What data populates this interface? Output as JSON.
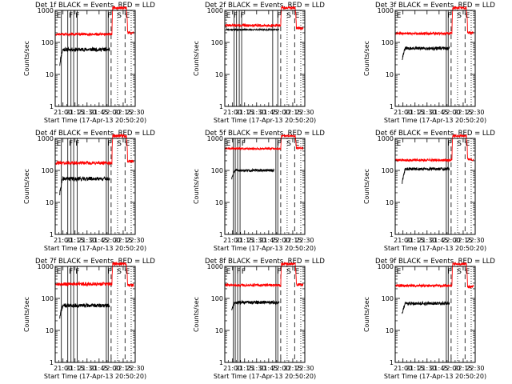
{
  "figure": {
    "background": "#ffffff",
    "event_color": "#000000",
    "lld_color": "#ff0000"
  },
  "chart_data": [
    {
      "type": "line",
      "title": "Det 1f BLACK = Events, RED = LLD",
      "xlabel": "Start Time (17-Apr-13 20:50:20)",
      "ylabel": "Counts/sec",
      "yscale": "log",
      "ylim": [
        1,
        1000
      ],
      "xlim": [
        "20:50:20",
        "22:30:00"
      ],
      "x_ticks": [
        "21:00",
        "21:15",
        "21:30",
        "21:45",
        "22:00",
        "22:15",
        "22:30"
      ],
      "y_ticks": [
        "1",
        "10",
        "100",
        "1000"
      ],
      "solid_markers": [
        "20:58:00",
        "21:06:00",
        "21:10:00",
        "21:13:20",
        "21:17:40",
        "21:54:00",
        "21:56:20"
      ],
      "dashed_markers": [
        "22:00:00",
        "22:17:20"
      ],
      "dotted_markers": [
        "22:08:00",
        "22:25:00"
      ],
      "flags": [
        {
          "text": "E",
          "time": "20:51:00"
        },
        {
          "text": "F",
          "time": "21:06:20"
        },
        {
          "text": "F",
          "time": "21:14:30"
        },
        {
          "text": "F",
          "time": "21:54:20"
        },
        {
          "text": "S",
          "time": "22:06:20"
        },
        {
          "text": "E",
          "time": "22:16:40"
        }
      ],
      "series": [
        {
          "name": "Events",
          "color": "#000000",
          "start": "20:56:00",
          "end": "21:58:00",
          "rise_from": 20,
          "level": 60,
          "noise": 0.06,
          "seed": 11
        },
        {
          "name": "LLD",
          "color": "#ff0000",
          "start": "20:51:00",
          "end": "22:28:00",
          "level": 180,
          "noise": 0.04,
          "seed": 12,
          "peak_time": "22:02:00",
          "peak_level": 1200,
          "drop_time": "22:19:00",
          "drop_level": 200
        }
      ]
    },
    {
      "type": "line",
      "title": "Det 2f BLACK = Events, RED = LLD",
      "xlabel": "Start Time (17-Apr-13 20:50:20)",
      "ylabel": "Counts/sec",
      "yscale": "log",
      "ylim": [
        1,
        1000
      ],
      "xlim": [
        "20:50:20",
        "22:30:00"
      ],
      "x_ticks": [
        "21:00",
        "21:15",
        "21:30",
        "21:45",
        "22:00",
        "22:15",
        "22:30"
      ],
      "y_ticks": [
        "1",
        "10",
        "100",
        "1000"
      ],
      "solid_markers": [
        "21:02:00",
        "21:05:00",
        "21:08:20",
        "21:11:20",
        "21:50:00",
        "21:56:20"
      ],
      "dashed_markers": [
        "22:00:00",
        "22:17:20"
      ],
      "dotted_markers": [
        "22:08:00",
        "22:25:00"
      ],
      "flags": [
        {
          "text": "E",
          "time": "20:51:00"
        },
        {
          "text": "F",
          "time": "21:00:00"
        },
        {
          "text": "F",
          "time": "21:08:40"
        },
        {
          "text": "F",
          "time": "21:54:20"
        },
        {
          "text": "S",
          "time": "22:06:20"
        },
        {
          "text": "E",
          "time": "22:16:40"
        }
      ],
      "series": [
        {
          "name": "Events",
          "color": "#000000",
          "start": "20:51:00",
          "end": "21:58:00",
          "level": 250,
          "noise": 0.02,
          "seed": 21
        },
        {
          "name": "LLD",
          "color": "#ff0000",
          "start": "20:51:00",
          "end": "22:28:00",
          "level": 340,
          "noise": 0.04,
          "seed": 22,
          "peak_time": "22:01:00",
          "peak_level": 1200,
          "drop_time": "22:18:00",
          "drop_level": 280
        }
      ]
    },
    {
      "type": "line",
      "title": "Det 3f BLACK = Events, RED = LLD",
      "xlabel": "Start Time (17-Apr-13 20:50:20)",
      "ylabel": "Counts/sec",
      "yscale": "log",
      "ylim": [
        1,
        1000
      ],
      "xlim": [
        "20:50:20",
        "22:30:00"
      ],
      "x_ticks": [
        "21:00",
        "21:15",
        "21:30",
        "21:45",
        "22:00",
        "22:15",
        "22:30"
      ],
      "y_ticks": [
        "1",
        "10",
        "100",
        "1000"
      ],
      "solid_markers": [
        "21:54:00",
        "21:56:20"
      ],
      "dashed_markers": [
        "22:00:00",
        "22:17:20"
      ],
      "dotted_markers": [
        "22:08:00",
        "22:25:00"
      ],
      "flags": [
        {
          "text": "E",
          "time": "20:51:00"
        },
        {
          "text": "F",
          "time": "21:54:20"
        },
        {
          "text": "S",
          "time": "22:06:20"
        },
        {
          "text": "E",
          "time": "22:16:40"
        }
      ],
      "series": [
        {
          "name": "Events",
          "color": "#000000",
          "start": "20:59:00",
          "end": "21:58:00",
          "rise_from": 30,
          "level": 65,
          "noise": 0.05,
          "seed": 31
        },
        {
          "name": "LLD",
          "color": "#ff0000",
          "start": "20:51:00",
          "end": "22:28:00",
          "level": 190,
          "noise": 0.04,
          "seed": 32,
          "peak_time": "22:02:00",
          "peak_level": 1200,
          "drop_time": "22:19:00",
          "drop_level": 200
        }
      ]
    },
    {
      "type": "line",
      "title": "Det 4f BLACK = Events, RED = LLD",
      "xlabel": "Start Time (17-Apr-13 20:50:20)",
      "ylabel": "Counts/sec",
      "yscale": "log",
      "ylim": [
        1,
        1000
      ],
      "xlim": [
        "20:50:20",
        "22:30:00"
      ],
      "x_ticks": [
        "21:00",
        "21:15",
        "21:30",
        "21:45",
        "22:00",
        "22:15",
        "22:30"
      ],
      "y_ticks": [
        "1",
        "10",
        "100",
        "1000"
      ],
      "solid_markers": [
        "20:58:00",
        "21:06:00",
        "21:10:00",
        "21:13:20",
        "21:17:40",
        "21:54:00",
        "21:56:20"
      ],
      "dashed_markers": [
        "22:00:00",
        "22:17:20"
      ],
      "dotted_markers": [
        "22:08:00",
        "22:25:00"
      ],
      "flags": [
        {
          "text": "E",
          "time": "20:51:00"
        },
        {
          "text": "F",
          "time": "21:06:20"
        },
        {
          "text": "F",
          "time": "21:14:30"
        },
        {
          "text": "F",
          "time": "21:54:20"
        },
        {
          "text": "S",
          "time": "22:06:20"
        },
        {
          "text": "E",
          "time": "22:16:40"
        }
      ],
      "series": [
        {
          "name": "Events",
          "color": "#000000",
          "start": "20:56:00",
          "end": "21:58:00",
          "rise_from": 18,
          "level": 55,
          "noise": 0.06,
          "seed": 41
        },
        {
          "name": "LLD",
          "color": "#ff0000",
          "start": "20:51:00",
          "end": "22:28:00",
          "level": 170,
          "noise": 0.05,
          "seed": 42,
          "peak_time": "22:02:00",
          "peak_level": 1200,
          "drop_time": "22:19:00",
          "drop_level": 190
        }
      ]
    },
    {
      "type": "line",
      "title": "Det 5f BLACK = Events, RED = LLD",
      "xlabel": "Start Time (17-Apr-13 20:50:20)",
      "ylabel": "Counts/sec",
      "yscale": "log",
      "ylim": [
        1,
        1000
      ],
      "xlim": [
        "20:50:20",
        "22:30:00"
      ],
      "x_ticks": [
        "21:00",
        "21:15",
        "21:30",
        "21:45",
        "22:00",
        "22:15",
        "22:30"
      ],
      "y_ticks": [
        "1",
        "10",
        "100",
        "1000"
      ],
      "solid_markers": [
        "21:01:00",
        "21:03:20",
        "21:06:20",
        "21:09:20",
        "21:54:00",
        "21:56:20"
      ],
      "dashed_markers": [
        "22:00:00",
        "22:17:20"
      ],
      "dotted_markers": [
        "22:08:00",
        "22:25:00"
      ],
      "flags": [
        {
          "text": "E",
          "time": "20:51:00"
        },
        {
          "text": "F",
          "time": "21:04:00"
        },
        {
          "text": "F",
          "time": "21:10:00"
        },
        {
          "text": "F",
          "time": "21:54:20"
        },
        {
          "text": "S",
          "time": "22:06:20"
        },
        {
          "text": "E",
          "time": "22:16:40"
        }
      ],
      "series": [
        {
          "name": "Events",
          "color": "#000000",
          "start": "20:59:00",
          "end": "21:52:00",
          "rise_from": 55,
          "level": 100,
          "noise": 0.04,
          "seed": 51
        },
        {
          "name": "LLD",
          "color": "#ff0000",
          "start": "20:51:00",
          "end": "22:28:00",
          "level": 480,
          "noise": 0.03,
          "seed": 52,
          "peak_time": "22:01:00",
          "peak_level": 1200,
          "drop_time": "22:18:00",
          "drop_level": 500
        }
      ]
    },
    {
      "type": "line",
      "title": "Det 6f BLACK = Events, RED = LLD",
      "xlabel": "Start Time (17-Apr-13 20:50:20)",
      "ylabel": "Counts/sec",
      "yscale": "log",
      "ylim": [
        1,
        1000
      ],
      "xlim": [
        "20:50:20",
        "22:30:00"
      ],
      "x_ticks": [
        "21:00",
        "21:15",
        "21:30",
        "21:45",
        "22:00",
        "22:15",
        "22:30"
      ],
      "y_ticks": [
        "1",
        "10",
        "100",
        "1000"
      ],
      "solid_markers": [
        "21:54:00",
        "21:56:20"
      ],
      "dashed_markers": [
        "22:00:00",
        "22:17:20"
      ],
      "dotted_markers": [
        "22:08:00",
        "22:25:00"
      ],
      "flags": [
        {
          "text": "E",
          "time": "20:51:00"
        },
        {
          "text": "F",
          "time": "21:54:20"
        },
        {
          "text": "S",
          "time": "22:06:20"
        },
        {
          "text": "E",
          "time": "22:16:40"
        }
      ],
      "series": [
        {
          "name": "Events",
          "color": "#000000",
          "start": "20:59:00",
          "end": "21:58:00",
          "rise_from": 40,
          "level": 110,
          "noise": 0.05,
          "seed": 61
        },
        {
          "name": "LLD",
          "color": "#ff0000",
          "start": "20:51:00",
          "end": "22:28:00",
          "level": 210,
          "noise": 0.04,
          "seed": 62,
          "peak_time": "22:02:00",
          "peak_level": 1200,
          "drop_time": "22:19:00",
          "drop_level": 220
        }
      ]
    },
    {
      "type": "line",
      "title": "Det 7f BLACK = Events, RED = LLD",
      "xlabel": "Start Time (17-Apr-13 20:50:20)",
      "ylabel": "Counts/sec",
      "yscale": "log",
      "ylim": [
        1,
        1000
      ],
      "xlim": [
        "20:50:20",
        "22:30:00"
      ],
      "x_ticks": [
        "21:00",
        "21:15",
        "21:30",
        "21:45",
        "22:00",
        "22:15",
        "22:30"
      ],
      "y_ticks": [
        "1",
        "10",
        "100",
        "1000"
      ],
      "solid_markers": [
        "20:58:00",
        "21:06:00",
        "21:10:00",
        "21:13:20",
        "21:17:40",
        "21:54:00",
        "21:56:20"
      ],
      "dashed_markers": [
        "22:00:00",
        "22:17:20"
      ],
      "dotted_markers": [
        "22:08:00",
        "22:25:00"
      ],
      "flags": [
        {
          "text": "E",
          "time": "20:51:00"
        },
        {
          "text": "F",
          "time": "21:06:20"
        },
        {
          "text": "F",
          "time": "21:14:30"
        },
        {
          "text": "F",
          "time": "21:54:20"
        },
        {
          "text": "S",
          "time": "22:06:20"
        },
        {
          "text": "E",
          "time": "22:16:40"
        }
      ],
      "series": [
        {
          "name": "Events",
          "color": "#000000",
          "start": "20:56:00",
          "end": "21:58:00",
          "rise_from": 25,
          "level": 60,
          "noise": 0.06,
          "seed": 71
        },
        {
          "name": "LLD",
          "color": "#ff0000",
          "start": "20:51:00",
          "end": "22:28:00",
          "level": 280,
          "noise": 0.05,
          "seed": 72,
          "peak_time": "22:02:00",
          "peak_level": 1200,
          "drop_time": "22:19:00",
          "drop_level": 260
        }
      ]
    },
    {
      "type": "line",
      "title": "Det 8f BLACK = Events, RED = LLD",
      "xlabel": "Start Time (17-Apr-13 20:50:20)",
      "ylabel": "Counts/sec",
      "yscale": "log",
      "ylim": [
        1,
        1000
      ],
      "xlim": [
        "20:50:20",
        "22:30:00"
      ],
      "x_ticks": [
        "21:00",
        "21:15",
        "21:30",
        "21:45",
        "22:00",
        "22:15",
        "22:30"
      ],
      "y_ticks": [
        "1",
        "10",
        "100",
        "1000"
      ],
      "solid_markers": [
        "21:01:00",
        "21:03:20",
        "21:06:20",
        "21:09:20",
        "21:54:00",
        "21:56:20"
      ],
      "dashed_markers": [
        "22:00:00",
        "22:17:20"
      ],
      "dotted_markers": [
        "22:08:00",
        "22:25:00"
      ],
      "flags": [
        {
          "text": "E",
          "time": "20:51:00"
        },
        {
          "text": "F",
          "time": "21:04:00"
        },
        {
          "text": "F",
          "time": "21:10:00"
        },
        {
          "text": "F",
          "time": "21:54:20"
        },
        {
          "text": "S",
          "time": "22:06:20"
        },
        {
          "text": "E",
          "time": "22:16:40"
        }
      ],
      "series": [
        {
          "name": "Events",
          "color": "#000000",
          "start": "20:59:00",
          "end": "21:58:00",
          "rise_from": 45,
          "level": 75,
          "noise": 0.05,
          "seed": 81
        },
        {
          "name": "LLD",
          "color": "#ff0000",
          "start": "20:51:00",
          "end": "22:28:00",
          "level": 260,
          "noise": 0.04,
          "seed": 82,
          "peak_time": "22:01:00",
          "peak_level": 1200,
          "drop_time": "22:18:00",
          "drop_level": 270
        }
      ]
    },
    {
      "type": "line",
      "title": "Det 9f BLACK = Events, RED = LLD",
      "xlabel": "Start Time (17-Apr-13 20:50:20)",
      "ylabel": "Counts/sec",
      "yscale": "log",
      "ylim": [
        1,
        1000
      ],
      "xlim": [
        "20:50:20",
        "22:30:00"
      ],
      "x_ticks": [
        "21:00",
        "21:15",
        "21:30",
        "21:45",
        "22:00",
        "22:15",
        "22:30"
      ],
      "y_ticks": [
        "1",
        "10",
        "100",
        "1000"
      ],
      "solid_markers": [
        "21:54:00",
        "21:56:20"
      ],
      "dashed_markers": [
        "22:00:00",
        "22:17:20"
      ],
      "dotted_markers": [
        "22:08:00",
        "22:25:00"
      ],
      "flags": [
        {
          "text": "E",
          "time": "20:51:00"
        },
        {
          "text": "F",
          "time": "21:54:20"
        },
        {
          "text": "S",
          "time": "22:06:20"
        },
        {
          "text": "E",
          "time": "22:16:40"
        }
      ],
      "series": [
        {
          "name": "Events",
          "color": "#000000",
          "start": "20:59:00",
          "end": "21:58:00",
          "rise_from": 35,
          "level": 70,
          "noise": 0.05,
          "seed": 91
        },
        {
          "name": "LLD",
          "color": "#ff0000",
          "start": "20:51:00",
          "end": "22:28:00",
          "level": 250,
          "noise": 0.04,
          "seed": 92,
          "peak_time": "22:02:00",
          "peak_level": 1200,
          "drop_time": "22:19:00",
          "drop_level": 230
        }
      ]
    }
  ]
}
